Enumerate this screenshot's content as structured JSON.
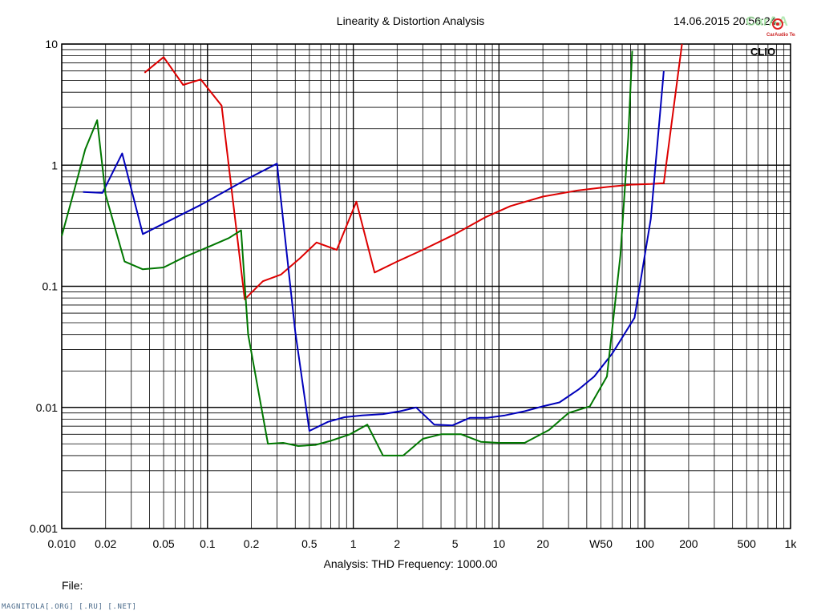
{
  "header": {
    "title": "Linearity & Distortion Analysis",
    "timestamp": "14.06.2015 20:56:24",
    "watermark": "CarAudio Team"
  },
  "plot_badge": "CLIO",
  "analysis_line": "Analysis: THD   Frequency: 1000.00",
  "file_label": "File:",
  "footer": "MAGNITOLA[.ORG] [.RU] [.NET]",
  "colors": {
    "red": "#dd0000",
    "blue": "#0000bb",
    "green": "#007700",
    "grid": "#000000"
  },
  "chart_data": {
    "type": "line",
    "title": "Linearity & Distortion Analysis",
    "xlabel": "",
    "ylabel": "",
    "xscale": "log",
    "yscale": "log",
    "xlim": [
      0.01,
      1000
    ],
    "ylim": [
      0.001,
      10
    ],
    "x_tick_labels": [
      {
        "v": 0.01,
        "t": "0.010"
      },
      {
        "v": 0.02,
        "t": "0.02"
      },
      {
        "v": 0.05,
        "t": "0.05"
      },
      {
        "v": 0.1,
        "t": "0.1"
      },
      {
        "v": 0.2,
        "t": "0.2"
      },
      {
        "v": 0.5,
        "t": "0.5"
      },
      {
        "v": 1,
        "t": "1"
      },
      {
        "v": 2,
        "t": "2"
      },
      {
        "v": 5,
        "t": "5"
      },
      {
        "v": 10,
        "t": "10"
      },
      {
        "v": 20,
        "t": "20"
      },
      {
        "v": 50,
        "t": "W50"
      },
      {
        "v": 100,
        "t": "100"
      },
      {
        "v": 200,
        "t": "200"
      },
      {
        "v": 500,
        "t": "500"
      },
      {
        "v": 1000,
        "t": "1k"
      }
    ],
    "y_tick_labels": [
      {
        "v": 10,
        "t": "10"
      },
      {
        "v": 1,
        "t": "1"
      },
      {
        "v": 0.1,
        "t": "0.1"
      },
      {
        "v": 0.01,
        "t": "0.01"
      },
      {
        "v": 0.001,
        "t": "0.001"
      }
    ],
    "grid": true,
    "series": [
      {
        "color": "red",
        "points": [
          [
            0.037,
            5.8
          ],
          [
            0.05,
            7.8
          ],
          [
            0.068,
            4.6
          ],
          [
            0.09,
            5.1
          ],
          [
            0.125,
            3.1
          ],
          [
            0.18,
            0.078
          ],
          [
            0.24,
            0.11
          ],
          [
            0.32,
            0.125
          ],
          [
            0.43,
            0.17
          ],
          [
            0.56,
            0.23
          ],
          [
            0.77,
            0.2
          ],
          [
            1.05,
            0.5
          ],
          [
            1.4,
            0.13
          ],
          [
            2,
            0.16
          ],
          [
            3,
            0.2
          ],
          [
            5,
            0.27
          ],
          [
            8,
            0.37
          ],
          [
            12,
            0.46
          ],
          [
            20,
            0.55
          ],
          [
            35,
            0.62
          ],
          [
            55,
            0.66
          ],
          [
            80,
            0.69
          ],
          [
            110,
            0.7
          ],
          [
            135,
            0.71
          ],
          [
            180,
            10
          ]
        ]
      },
      {
        "color": "blue",
        "points": [
          [
            0.014,
            0.6
          ],
          [
            0.019,
            0.59
          ],
          [
            0.026,
            1.25
          ],
          [
            0.036,
            0.27
          ],
          [
            0.09,
            0.47
          ],
          [
            0.18,
            0.75
          ],
          [
            0.3,
            1.03
          ],
          [
            0.4,
            0.042
          ],
          [
            0.5,
            0.0064
          ],
          [
            0.67,
            0.0076
          ],
          [
            0.87,
            0.0083
          ],
          [
            1.15,
            0.0086
          ],
          [
            1.6,
            0.0088
          ],
          [
            2.1,
            0.0093
          ],
          [
            2.7,
            0.01
          ],
          [
            3.6,
            0.0072
          ],
          [
            4.8,
            0.0071
          ],
          [
            6.3,
            0.0082
          ],
          [
            8.3,
            0.0082
          ],
          [
            11,
            0.0086
          ],
          [
            15,
            0.0093
          ],
          [
            20,
            0.0102
          ],
          [
            26,
            0.011
          ],
          [
            35,
            0.014
          ],
          [
            45,
            0.018
          ],
          [
            60,
            0.028
          ],
          [
            85,
            0.055
          ],
          [
            110,
            0.36
          ],
          [
            135,
            6
          ]
        ]
      },
      {
        "color": "green",
        "points": [
          [
            0.01,
            0.26
          ],
          [
            0.012,
            0.58
          ],
          [
            0.0145,
            1.35
          ],
          [
            0.0175,
            2.35
          ],
          [
            0.02,
            0.57
          ],
          [
            0.027,
            0.16
          ],
          [
            0.036,
            0.138
          ],
          [
            0.05,
            0.143
          ],
          [
            0.07,
            0.175
          ],
          [
            0.1,
            0.21
          ],
          [
            0.14,
            0.25
          ],
          [
            0.17,
            0.29
          ],
          [
            0.19,
            0.04
          ],
          [
            0.26,
            0.005
          ],
          [
            0.33,
            0.0051
          ],
          [
            0.42,
            0.0048
          ],
          [
            0.55,
            0.0049
          ],
          [
            0.7,
            0.0053
          ],
          [
            0.95,
            0.006
          ],
          [
            1.25,
            0.0072
          ],
          [
            1.6,
            0.004
          ],
          [
            2.2,
            0.004
          ],
          [
            3,
            0.0055
          ],
          [
            4,
            0.006
          ],
          [
            5.5,
            0.006
          ],
          [
            7.5,
            0.0052
          ],
          [
            10,
            0.0051
          ],
          [
            15,
            0.0051
          ],
          [
            22,
            0.0065
          ],
          [
            30,
            0.009
          ],
          [
            42,
            0.0102
          ],
          [
            55,
            0.018
          ],
          [
            68,
            0.18
          ],
          [
            77,
            1.7
          ],
          [
            82,
            8.8
          ]
        ]
      }
    ]
  }
}
